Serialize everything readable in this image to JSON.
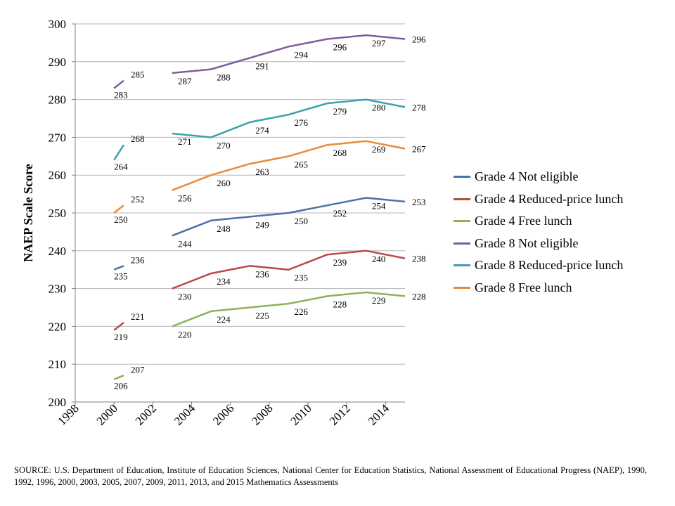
{
  "chart_data": {
    "type": "line",
    "title": "",
    "xlabel": "",
    "ylabel": "NAEP Scale Score",
    "xlim": [
      1998,
      2015
    ],
    "ylim": [
      200,
      300
    ],
    "x_ticks": [
      1998,
      2000,
      2002,
      2004,
      2006,
      2008,
      2010,
      2012,
      2014
    ],
    "y_ticks": [
      200,
      210,
      220,
      230,
      240,
      250,
      260,
      270,
      280,
      290,
      300
    ],
    "grid": "horizontal",
    "legend_position": "right",
    "series": [
      {
        "name": "Grade 4 Not eligible",
        "color": "#4A72A8",
        "segments": [
          {
            "points": [
              [
                2000,
                235
              ],
              [
                2000.5,
                236
              ]
            ],
            "labels": [
              "235",
              "236"
            ]
          },
          {
            "points": [
              [
                2003,
                244
              ],
              [
                2005,
                248
              ],
              [
                2007,
                249
              ],
              [
                2009,
                250
              ],
              [
                2011,
                252
              ],
              [
                2013,
                254
              ],
              [
                2015,
                253
              ]
            ],
            "labels": [
              "244",
              "248",
              "249",
              "250",
              "252",
              "254",
              "253"
            ]
          }
        ]
      },
      {
        "name": "Grade 4 Reduced-price lunch",
        "color": "#B94A48",
        "segments": [
          {
            "points": [
              [
                2000,
                219
              ],
              [
                2000.5,
                221
              ]
            ],
            "labels": [
              "219",
              "221"
            ]
          },
          {
            "points": [
              [
                2003,
                230
              ],
              [
                2005,
                234
              ],
              [
                2007,
                236
              ],
              [
                2009,
                235
              ],
              [
                2011,
                239
              ],
              [
                2013,
                240
              ],
              [
                2015,
                238
              ]
            ],
            "labels": [
              "230",
              "234",
              "236",
              "235",
              "239",
              "240",
              "238"
            ]
          }
        ]
      },
      {
        "name": "Grade 4 Free lunch",
        "color": "#8FB254",
        "segments": [
          {
            "points": [
              [
                2000,
                206
              ],
              [
                2000.5,
                207
              ]
            ],
            "labels": [
              "206",
              "207"
            ]
          },
          {
            "points": [
              [
                2003,
                220
              ],
              [
                2005,
                224
              ],
              [
                2007,
                225
              ],
              [
                2009,
                226
              ],
              [
                2011,
                228
              ],
              [
                2013,
                229
              ],
              [
                2015,
                228
              ]
            ],
            "labels": [
              "220",
              "224",
              "225",
              "226",
              "228",
              "229",
              "228"
            ]
          }
        ]
      },
      {
        "name": "Grade 8 Not eligible",
        "color": "#7C5C9E",
        "segments": [
          {
            "points": [
              [
                2000,
                283
              ],
              [
                2000.5,
                285
              ]
            ],
            "labels": [
              "283",
              "285"
            ]
          },
          {
            "points": [
              [
                2003,
                287
              ],
              [
                2005,
                288
              ],
              [
                2007,
                291
              ],
              [
                2009,
                294
              ],
              [
                2011,
                296
              ],
              [
                2013,
                297
              ],
              [
                2015,
                296
              ]
            ],
            "labels": [
              "287",
              "288",
              "291",
              "294",
              "296",
              "297",
              "296"
            ]
          }
        ]
      },
      {
        "name": "Grade 8 Reduced-price lunch",
        "color": "#3FA0B0",
        "segments": [
          {
            "points": [
              [
                2000,
                264
              ],
              [
                2000.5,
                268
              ]
            ],
            "labels": [
              "264",
              "268"
            ]
          },
          {
            "points": [
              [
                2003,
                271
              ],
              [
                2005,
                270
              ],
              [
                2007,
                274
              ],
              [
                2009,
                276
              ],
              [
                2011,
                279
              ],
              [
                2013,
                280
              ],
              [
                2015,
                278
              ]
            ],
            "labels": [
              "271",
              "270",
              "274",
              "276",
              "279",
              "280",
              "278"
            ]
          }
        ]
      },
      {
        "name": "Grade 8 Free lunch",
        "color": "#E88A3C",
        "segments": [
          {
            "points": [
              [
                2000,
                250
              ],
              [
                2000.5,
                252
              ]
            ],
            "labels": [
              "250",
              "252"
            ]
          },
          {
            "points": [
              [
                2003,
                256
              ],
              [
                2005,
                260
              ],
              [
                2007,
                263
              ],
              [
                2009,
                265
              ],
              [
                2011,
                268
              ],
              [
                2013,
                269
              ],
              [
                2015,
                267
              ]
            ],
            "labels": [
              "256",
              "260",
              "263",
              "265",
              "268",
              "269",
              "267"
            ]
          }
        ]
      }
    ]
  },
  "source_note": "SOURCE: U.S. Department of Education, Institute of Education Sciences, National Center for Education Statistics, National Assessment of Educational Progress (NAEP), 1990, 1992, 1996, 2000, 2003, 2005, 2007, 2009, 2011, 2013, and 2015 Mathematics Assessments"
}
